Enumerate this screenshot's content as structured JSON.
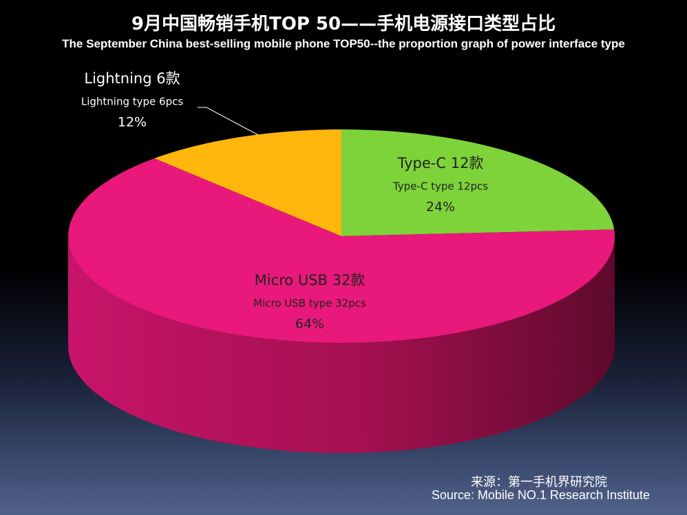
{
  "chart_data": {
    "type": "pie",
    "title": "9月中国畅销手机TOP 50——手机电源接口类型占比",
    "subtitle": "The September China best-selling mobile phone TOP50--the proportion graph of power interface type",
    "slices": [
      {
        "key": "type_c",
        "label_cn": "Type-C 12款",
        "label_en": "Type-C type  12pcs",
        "value": 12,
        "percent": "24%",
        "color": "#7ed23a",
        "side_color": "#4f8c1f"
      },
      {
        "key": "micro_usb",
        "label_cn": "Micro USB 32款",
        "label_en": "Micro USB type  32pcs",
        "value": 32,
        "percent": "64%",
        "color": "#e8197a",
        "side_color": "#a0104f"
      },
      {
        "key": "lightning",
        "label_cn": "Lightning 6款",
        "label_en": "Lightning type 6pcs",
        "value": 6,
        "percent": "12%",
        "color": "#ffb60d",
        "side_color": "#b77f00"
      }
    ],
    "label_colors": {
      "outside": "#ffffff",
      "inside": "#222222"
    }
  },
  "footer": {
    "source_cn": "来源：第一手机界研究院",
    "source_en": "Source: Mobile NO.1 Research Institute"
  }
}
